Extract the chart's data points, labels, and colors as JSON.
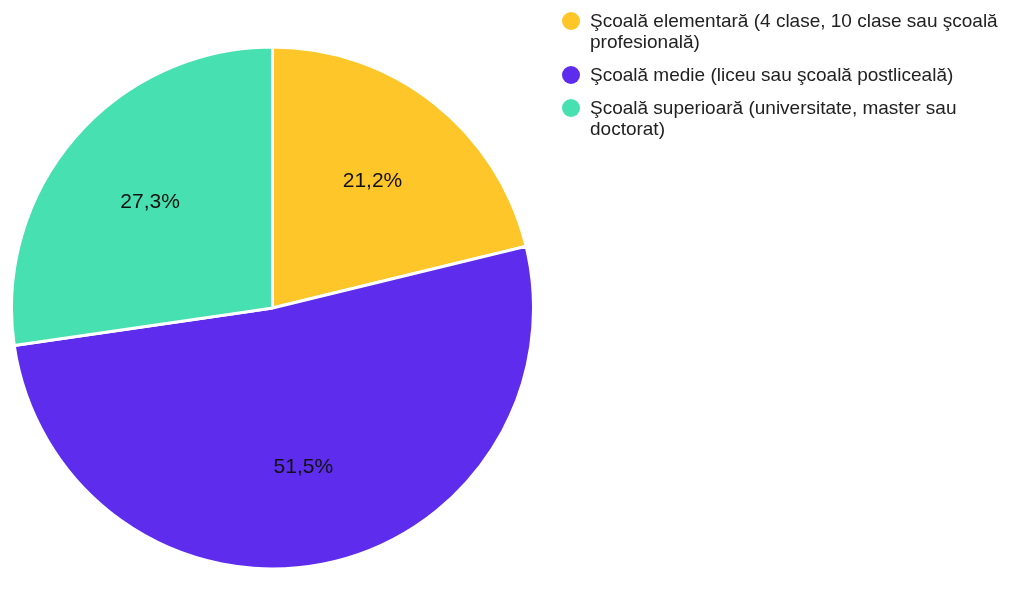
{
  "chart_data": {
    "type": "pie",
    "categories": [
      "Şcoală elementară (4 clase, 10 clase sau şcoală profesională)",
      "Şcoală medie (liceu sau şcoală postliceală)",
      "Şcoală superioară (universitate, master sau doctorat)"
    ],
    "values": [
      21.2,
      51.5,
      27.3
    ],
    "colors": [
      "#ffc629",
      "#5e2ced",
      "#47e0b0"
    ],
    "value_labels": [
      "21,2%",
      "51,5%",
      "27,3%"
    ],
    "legend": "right"
  }
}
